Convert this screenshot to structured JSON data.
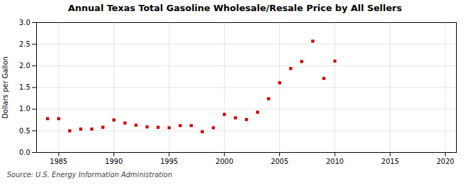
{
  "chart_data": {
    "type": "scatter",
    "title": "Annual Texas Total Gasoline Wholesale/Resale Price by All Sellers",
    "y_label": "Dollars per Gallon",
    "annotations": [
      "Source: U.S. Energy Information Administration"
    ],
    "x": [
      1984,
      1985,
      1986,
      1987,
      1988,
      1989,
      1990,
      1991,
      1992,
      1993,
      1994,
      1995,
      1996,
      1997,
      1998,
      1999,
      2000,
      2001,
      2002,
      2003,
      2004,
      2005,
      2006,
      2007,
      2008,
      2009,
      2010
    ],
    "values": [
      0.78,
      0.78,
      0.5,
      0.54,
      0.54,
      0.58,
      0.75,
      0.68,
      0.63,
      0.59,
      0.58,
      0.57,
      0.62,
      0.62,
      0.48,
      0.57,
      0.88,
      0.8,
      0.76,
      0.93,
      1.24,
      1.61,
      1.94,
      2.1,
      2.57,
      1.71,
      2.11
    ],
    "color": "#cc0000",
    "marker": "square",
    "xlim": [
      1983,
      2021
    ],
    "ylim": [
      0.0,
      3.0
    ],
    "xticks": [
      1985,
      1990,
      1995,
      2000,
      2005,
      2010,
      2015,
      2020
    ],
    "yticks": [
      {
        "value": 0,
        "label": "0.0"
      },
      0.5,
      {
        "value": 1,
        "label": "1.0"
      },
      1.5,
      {
        "value": 2,
        "label": "2.0"
      },
      2.5,
      {
        "value": 3,
        "label": "3.0"
      }
    ],
    "grid": true
  }
}
